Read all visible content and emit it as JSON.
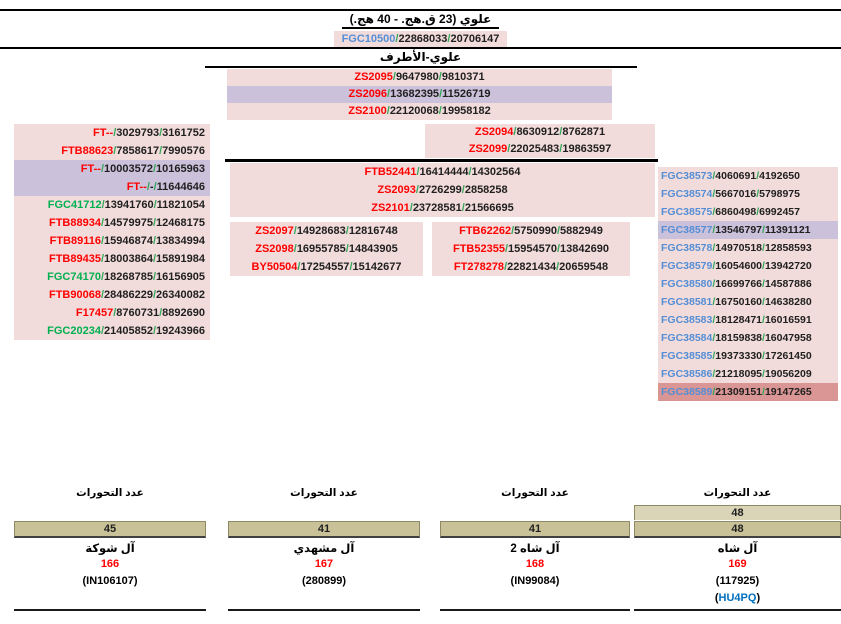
{
  "header": {
    "title": "علوي (23 ق.هج. - 40 هج.)",
    "section_title": "علوي-الأطرف"
  },
  "format": {
    "separator": "/"
  },
  "palette": {
    "pink": "#f2dcdb",
    "lavender": "#ccc1da",
    "rose": "#d99694",
    "red": "#ff0000",
    "green": "#00b050",
    "blue": "#558ed5",
    "slash": "#35a85c",
    "num": "#1f1f1f",
    "bar": "#c9c299",
    "bar_light": "#dbd5b8",
    "bar_border": "#8f8a66",
    "line": "#000000",
    "link": "#0070c0"
  },
  "root_rows": [
    {
      "snp": "FGC10500",
      "pos1": "22868033",
      "pos2": "20706147",
      "color": "blue",
      "bg": "pink"
    }
  ],
  "central_rows": [
    {
      "snp": "ZS2095",
      "pos1": "9647980",
      "pos2": "9810371",
      "color": "red",
      "bg": "pink"
    },
    {
      "snp": "ZS2096",
      "pos1": "13682395",
      "pos2": "11526719",
      "color": "red",
      "bg": "lavender"
    },
    {
      "snp": "ZS2100",
      "pos1": "22120068",
      "pos2": "19958182",
      "color": "red",
      "bg": "pink"
    }
  ],
  "branch_rows": [
    {
      "snp": "ZS2094",
      "pos1": "8630912",
      "pos2": "8762871",
      "color": "red",
      "bg": "pink"
    },
    {
      "snp": "ZS2099",
      "pos1": "22025483",
      "pos2": "19863597",
      "color": "red",
      "bg": "pink"
    }
  ],
  "left_column": [
    {
      "snp": "FT--",
      "pos1": "3029793",
      "pos2": "3161752",
      "color": "red",
      "bg": "pink"
    },
    {
      "snp": "FTB88623",
      "pos1": "7858617",
      "pos2": "7990576",
      "color": "red",
      "bg": "pink"
    },
    {
      "snp": "FT--",
      "pos1": "10003572",
      "pos2": "10165963",
      "color": "red",
      "bg": "lavender"
    },
    {
      "snp": "FT--",
      "pos1": "-",
      "pos2": "11644646",
      "color": "red",
      "bg": "lavender"
    },
    {
      "snp": "FGC41712",
      "pos1": "13941760",
      "pos2": "11821054",
      "color": "green",
      "bg": "pink"
    },
    {
      "snp": "FTB88934",
      "pos1": "14579975",
      "pos2": "12468175",
      "color": "red",
      "bg": "pink"
    },
    {
      "snp": "FTB89116",
      "pos1": "15946874",
      "pos2": "13834994",
      "color": "red",
      "bg": "pink"
    },
    {
      "snp": "FTB89435",
      "pos1": "18003864",
      "pos2": "15891984",
      "color": "red",
      "bg": "pink"
    },
    {
      "snp": "FGC74170",
      "pos1": "18268785",
      "pos2": "16156905",
      "color": "green",
      "bg": "pink"
    },
    {
      "snp": "FTB90068",
      "pos1": "28486229",
      "pos2": "26340082",
      "color": "red",
      "bg": "pink"
    },
    {
      "snp": "F17457",
      "pos1": "8760731",
      "pos2": "8892690",
      "color": "red",
      "bg": "pink"
    },
    {
      "snp": "FGC20234",
      "pos1": "21405852",
      "pos2": "19243966",
      "color": "green",
      "bg": "pink"
    }
  ],
  "middle_block": [
    {
      "snp": "FTB52441",
      "pos1": "16414444",
      "pos2": "14302564",
      "color": "red",
      "bg": "pink"
    },
    {
      "snp": "ZS2093",
      "pos1": "2726299",
      "pos2": "2858258",
      "color": "red",
      "bg": "pink"
    },
    {
      "snp": "ZS2101",
      "pos1": "23728581",
      "pos2": "21566695",
      "color": "red",
      "bg": "pink"
    }
  ],
  "middle_left_sub": [
    {
      "snp": "ZS2097",
      "pos1": "14928683",
      "pos2": "12816748",
      "color": "red",
      "bg": "pink"
    },
    {
      "snp": "ZS2098",
      "pos1": "16955785",
      "pos2": "14843905",
      "color": "red",
      "bg": "pink"
    },
    {
      "snp": "BY50504",
      "pos1": "17254557",
      "pos2": "15142677",
      "color": "red",
      "bg": "pink"
    }
  ],
  "middle_right_sub": [
    {
      "snp": "FTB62262",
      "pos1": "5750990",
      "pos2": "5882949",
      "color": "red",
      "bg": "pink"
    },
    {
      "snp": "FTB52355",
      "pos1": "15954570",
      "pos2": "13842690",
      "color": "red",
      "bg": "pink"
    },
    {
      "snp": "FT278278",
      "pos1": "22821434",
      "pos2": "20659548",
      "color": "red",
      "bg": "pink"
    }
  ],
  "right_column": [
    {
      "snp": "FGC38573",
      "pos1": "4060691",
      "pos2": "4192650",
      "color": "blue",
      "bg": "pink"
    },
    {
      "snp": "FGC38574",
      "pos1": "5667016",
      "pos2": "5798975",
      "color": "blue",
      "bg": "pink"
    },
    {
      "snp": "FGC38575",
      "pos1": "6860498",
      "pos2": "6992457",
      "color": "blue",
      "bg": "pink"
    },
    {
      "snp": "FGC38577",
      "pos1": "13546797",
      "pos2": "11391121",
      "color": "blue",
      "bg": "lavender"
    },
    {
      "snp": "FGC38578",
      "pos1": "14970518",
      "pos2": "12858593",
      "color": "blue",
      "bg": "pink"
    },
    {
      "snp": "FGC38579",
      "pos1": "16054600",
      "pos2": "13942720",
      "color": "blue",
      "bg": "pink"
    },
    {
      "snp": "FGC38580",
      "pos1": "16699766",
      "pos2": "14587886",
      "color": "blue",
      "bg": "pink"
    },
    {
      "snp": "FGC38581",
      "pos1": "16750160",
      "pos2": "14638280",
      "color": "blue",
      "bg": "pink"
    },
    {
      "snp": "FGC38583",
      "pos1": "18128471",
      "pos2": "16016591",
      "color": "blue",
      "bg": "pink"
    },
    {
      "snp": "FGC38584",
      "pos1": "18159838",
      "pos2": "16047958",
      "color": "blue",
      "bg": "pink"
    },
    {
      "snp": "FGC38585",
      "pos1": "19373330",
      "pos2": "17261450",
      "color": "blue",
      "bg": "pink"
    },
    {
      "snp": "FGC38586",
      "pos1": "21218095",
      "pos2": "19056209",
      "color": "blue",
      "bg": "pink"
    },
    {
      "snp": "FGC38589",
      "pos1": "21309151",
      "pos2": "19147265",
      "color": "blue",
      "bg": "rose"
    }
  ],
  "summary_columns": [
    {
      "label": "عدد التحورات",
      "bar": "45",
      "name": "آل شوكة",
      "number": "166",
      "id": "(IN106107)"
    },
    {
      "label": "عدد التحورات",
      "bar": "41",
      "name": "آل مشهدي",
      "number": "167",
      "id": "(280899)"
    },
    {
      "label": "عدد التحورات",
      "bar": "41",
      "name": "آل شاه 2",
      "number": "168",
      "id": "(IN99084)"
    },
    {
      "label": "عدد التحورات",
      "bar_top": "48",
      "bar": "48",
      "name": "آل شاه",
      "number": "169",
      "id": "(117925)",
      "extra_open": "(",
      "extra_text": "HU4PQ",
      "extra_close": ")"
    }
  ]
}
